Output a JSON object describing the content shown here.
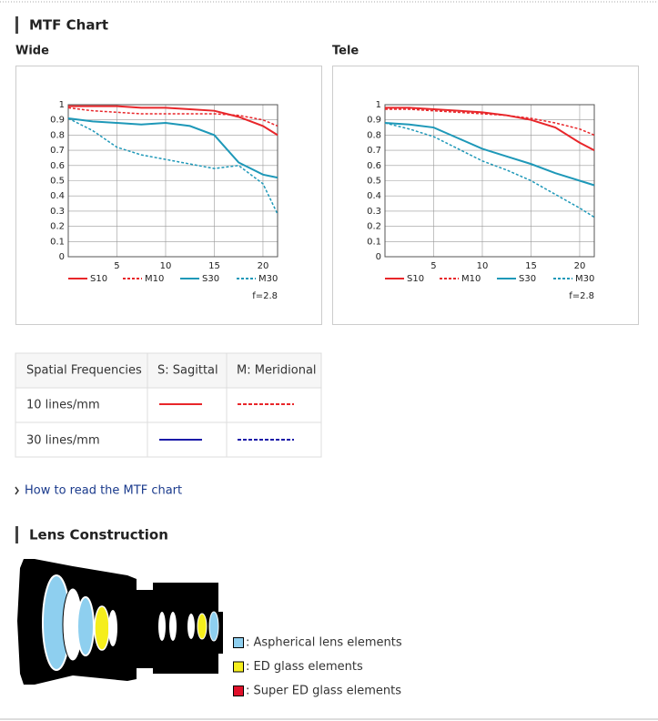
{
  "mtf_section": {
    "title": "MTF Chart"
  },
  "chart_data": [
    {
      "type": "line",
      "title": "Wide",
      "annotation": "f=2.8",
      "x": [
        0,
        2.5,
        5,
        7.5,
        10,
        12.5,
        15,
        17.5,
        20,
        21.5
      ],
      "xlim": [
        0,
        21.5
      ],
      "xticks": [
        5,
        10,
        15,
        20
      ],
      "ylim": [
        0,
        1
      ],
      "yticks": [
        0,
        0.1,
        0.2,
        0.3,
        0.4,
        0.5,
        0.6,
        0.7,
        0.8,
        0.9,
        1
      ],
      "grid": true,
      "series": [
        {
          "name": "S10",
          "color": "#e8262a",
          "dashed": false,
          "values": [
            0.99,
            0.99,
            0.99,
            0.98,
            0.98,
            0.97,
            0.96,
            0.92,
            0.86,
            0.8
          ]
        },
        {
          "name": "M10",
          "color": "#e8262a",
          "dashed": true,
          "values": [
            0.98,
            0.96,
            0.95,
            0.94,
            0.94,
            0.94,
            0.94,
            0.93,
            0.9,
            0.86
          ]
        },
        {
          "name": "S30",
          "color": "#1e98b8",
          "dashed": false,
          "values": [
            0.91,
            0.89,
            0.88,
            0.87,
            0.88,
            0.86,
            0.8,
            0.62,
            0.54,
            0.52
          ]
        },
        {
          "name": "M30",
          "color": "#1e98b8",
          "dashed": true,
          "values": [
            0.91,
            0.83,
            0.72,
            0.67,
            0.64,
            0.61,
            0.58,
            0.6,
            0.48,
            0.28
          ]
        }
      ]
    },
    {
      "type": "line",
      "title": "Tele",
      "annotation": "f=2.8",
      "x": [
        0,
        2.5,
        5,
        7.5,
        10,
        12.5,
        15,
        17.5,
        20,
        21.5
      ],
      "xlim": [
        0,
        21.5
      ],
      "xticks": [
        5,
        10,
        15,
        20
      ],
      "ylim": [
        0,
        1
      ],
      "yticks": [
        0,
        0.1,
        0.2,
        0.3,
        0.4,
        0.5,
        0.6,
        0.7,
        0.8,
        0.9,
        1
      ],
      "grid": true,
      "series": [
        {
          "name": "S10",
          "color": "#e8262a",
          "dashed": false,
          "values": [
            0.98,
            0.98,
            0.97,
            0.96,
            0.95,
            0.93,
            0.9,
            0.85,
            0.75,
            0.7
          ]
        },
        {
          "name": "M10",
          "color": "#e8262a",
          "dashed": true,
          "values": [
            0.97,
            0.97,
            0.96,
            0.95,
            0.94,
            0.93,
            0.91,
            0.88,
            0.84,
            0.8
          ]
        },
        {
          "name": "S30",
          "color": "#1e98b8",
          "dashed": false,
          "values": [
            0.88,
            0.87,
            0.85,
            0.78,
            0.71,
            0.66,
            0.61,
            0.55,
            0.5,
            0.47
          ]
        },
        {
          "name": "M30",
          "color": "#1e98b8",
          "dashed": true,
          "values": [
            0.88,
            0.84,
            0.79,
            0.71,
            0.63,
            0.57,
            0.5,
            0.41,
            0.32,
            0.26
          ]
        }
      ]
    }
  ],
  "table": {
    "header": [
      "Spatial Frequencies",
      "S: Sagittal",
      "M: Meridional"
    ],
    "rows": [
      [
        "10 lines/mm"
      ],
      [
        "30 lines/mm"
      ]
    ]
  },
  "link": "How to read the MTF chart",
  "lens_section": {
    "title": "Lens Construction",
    "legend": [
      {
        "label": ": Aspherical lens elements",
        "color": "#8ecfef"
      },
      {
        "label": ": ED glass elements",
        "color": "#f5ee1c"
      },
      {
        "label": ": Super ED glass elements",
        "color": "#e0102a"
      }
    ]
  }
}
